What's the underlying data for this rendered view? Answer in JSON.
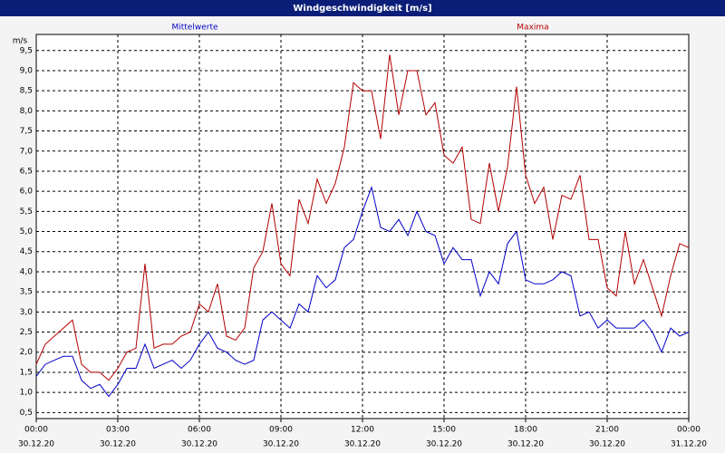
{
  "chart_data": {
    "type": "line",
    "title": "Windgeschwindigkeit [m/s]",
    "ylabel": "m/s",
    "x": [
      0,
      20,
      40,
      60,
      80,
      100,
      120,
      140,
      160,
      180,
      200,
      220,
      240,
      260,
      280,
      300,
      320,
      340,
      360,
      380,
      400,
      420,
      440,
      460,
      480,
      500,
      520,
      540,
      560,
      580,
      600,
      620,
      640,
      660,
      680,
      700,
      720,
      740,
      760,
      780,
      800,
      820,
      840,
      860,
      880,
      900,
      920,
      940,
      960,
      980,
      1000,
      1020,
      1040,
      1060,
      1080,
      1100,
      1120,
      1140,
      1160,
      1180,
      1200,
      1220,
      1240,
      1260,
      1280,
      1300,
      1320,
      1340,
      1360,
      1380,
      1400,
      1420,
      1440
    ],
    "series": [
      {
        "name": "Mittelwerte",
        "color": "#0000c8",
        "values": [
          1.4,
          1.7,
          1.8,
          1.9,
          1.9,
          1.3,
          1.1,
          1.2,
          0.9,
          1.2,
          1.6,
          1.6,
          2.2,
          1.6,
          1.7,
          1.8,
          1.6,
          1.8,
          2.2,
          2.5,
          2.1,
          2.0,
          1.8,
          1.7,
          1.8,
          2.8,
          3.0,
          2.8,
          2.6,
          3.2,
          3.0,
          3.9,
          3.6,
          3.8,
          4.6,
          4.8,
          5.5,
          6.1,
          5.1,
          5.0,
          5.3,
          4.9,
          5.5,
          5.0,
          4.9,
          4.2,
          4.6,
          4.3,
          4.3,
          3.4,
          4.0,
          3.7,
          4.7,
          5.0,
          3.8,
          3.7,
          3.7,
          3.8,
          4.0,
          3.9,
          2.9,
          3.0,
          2.6,
          2.8,
          2.6,
          2.6,
          2.6,
          2.8,
          2.5,
          2.0,
          2.6,
          2.4,
          2.5
        ]
      },
      {
        "name": "Maxima",
        "color": "#b40000",
        "values": [
          1.7,
          2.2,
          2.4,
          2.6,
          2.8,
          1.7,
          1.5,
          1.5,
          1.3,
          1.6,
          2.0,
          2.1,
          4.2,
          2.1,
          2.2,
          2.2,
          2.4,
          2.5,
          3.2,
          3.0,
          3.7,
          2.4,
          2.3,
          2.6,
          4.1,
          4.5,
          5.7,
          4.2,
          3.9,
          5.8,
          5.2,
          6.3,
          5.7,
          6.2,
          7.1,
          8.7,
          8.5,
          8.5,
          7.3,
          9.4,
          7.9,
          9.0,
          9.0,
          7.9,
          8.2,
          6.9,
          6.7,
          7.1,
          5.3,
          5.2,
          6.7,
          5.5,
          6.6,
          8.6,
          6.4,
          5.7,
          6.1,
          4.8,
          5.9,
          5.8,
          6.4,
          4.8,
          4.8,
          3.6,
          3.4,
          5.0,
          3.7,
          4.3,
          3.6,
          2.9,
          3.9,
          4.7,
          4.6
        ]
      }
    ],
    "xlim": [
      0,
      1440
    ],
    "xticks": [
      {
        "value": 0,
        "label": "00:00"
      },
      {
        "value": 180,
        "label": "03:00"
      },
      {
        "value": 360,
        "label": "06:00"
      },
      {
        "value": 540,
        "label": "09:00"
      },
      {
        "value": 720,
        "label": "12:00"
      },
      {
        "value": 900,
        "label": "15:00"
      },
      {
        "value": 1080,
        "label": "18:00"
      },
      {
        "value": 1260,
        "label": "21:00"
      },
      {
        "value": 1440,
        "label": "00:00"
      }
    ],
    "xtick_dates": [
      "30.12.20",
      "30.12.20",
      "30.12.20",
      "30.12.20",
      "30.12.20",
      "30.12.20",
      "30.12.20",
      "30.12.20",
      "31.12.20"
    ],
    "ylim": [
      0.35,
      9.9
    ],
    "yticks": [
      {
        "value": 0.5,
        "label": "0,5"
      },
      {
        "value": 1,
        "label": "1,0"
      },
      {
        "value": 1.5,
        "label": "1,5"
      },
      {
        "value": 2,
        "label": "2,0"
      },
      {
        "value": 2.5,
        "label": "2,5"
      },
      {
        "value": 3,
        "label": "3,0"
      },
      {
        "value": 3.5,
        "label": "3,5"
      },
      {
        "value": 4,
        "label": "4,0"
      },
      {
        "value": 4.5,
        "label": "4,5"
      },
      {
        "value": 5,
        "label": "5,0"
      },
      {
        "value": 5.5,
        "label": "5,5"
      },
      {
        "value": 6,
        "label": "6,0"
      },
      {
        "value": 6.5,
        "label": "6,5"
      },
      {
        "value": 7,
        "label": "7,0"
      },
      {
        "value": 7.5,
        "label": "7,5"
      },
      {
        "value": 8,
        "label": "8,0"
      },
      {
        "value": 8.5,
        "label": "8,5"
      },
      {
        "value": 9,
        "label": "9,0"
      },
      {
        "value": 9.5,
        "label": "9,5"
      }
    ],
    "grid": true
  }
}
